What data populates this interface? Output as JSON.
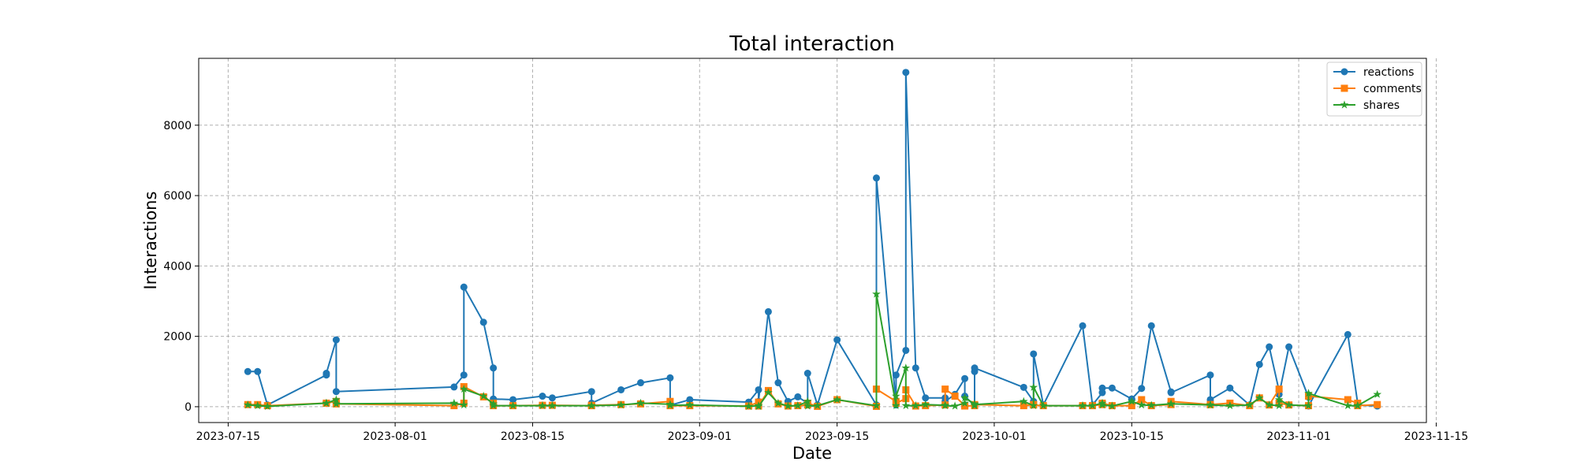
{
  "chart_data": {
    "type": "line",
    "title": "Total interaction",
    "xlabel": "Date",
    "ylabel": "Interactions",
    "grid": true,
    "legend_position": "top-right",
    "x_axis_type": "date",
    "xlim": [
      "2023-07-12",
      "2023-11-14"
    ],
    "ylim": [
      -450,
      9900
    ],
    "x_ticks": [
      "2023-07-15",
      "2023-08-01",
      "2023-08-15",
      "2023-09-01",
      "2023-09-15",
      "2023-10-01",
      "2023-10-15",
      "2023-11-01",
      "2023-11-15"
    ],
    "y_ticks": [
      0,
      2000,
      4000,
      6000,
      8000
    ],
    "dates": [
      "2023-07-17",
      "2023-07-18",
      "2023-07-19",
      "2023-07-25",
      "2023-07-25",
      "2023-07-26",
      "2023-07-26",
      "2023-08-07",
      "2023-08-08",
      "2023-08-08",
      "2023-08-10",
      "2023-08-11",
      "2023-08-11",
      "2023-08-13",
      "2023-08-16",
      "2023-08-17",
      "2023-08-21",
      "2023-08-21",
      "2023-08-24",
      "2023-08-26",
      "2023-08-29",
      "2023-08-29",
      "2023-08-31",
      "2023-09-06",
      "2023-09-07",
      "2023-09-07",
      "2023-09-08",
      "2023-09-09",
      "2023-09-10",
      "2023-09-11",
      "2023-09-12",
      "2023-09-12",
      "2023-09-13",
      "2023-09-15",
      "2023-09-19",
      "2023-09-19",
      "2023-09-21",
      "2023-09-21",
      "2023-09-22",
      "2023-09-22",
      "2023-09-23",
      "2023-09-24",
      "2023-09-26",
      "2023-09-26",
      "2023-09-27",
      "2023-09-28",
      "2023-09-28",
      "2023-09-29",
      "2023-09-29",
      "2023-09-29",
      "2023-10-04",
      "2023-10-05",
      "2023-10-05",
      "2023-10-06",
      "2023-10-10",
      "2023-10-11",
      "2023-10-12",
      "2023-10-12",
      "2023-10-13",
      "2023-10-15",
      "2023-10-16",
      "2023-10-17",
      "2023-10-19",
      "2023-10-19",
      "2023-10-23",
      "2023-10-23",
      "2023-10-25",
      "2023-10-27",
      "2023-10-28",
      "2023-10-29",
      "2023-10-30",
      "2023-10-30",
      "2023-10-31",
      "2023-11-02",
      "2023-11-02",
      "2023-11-06",
      "2023-11-07",
      "2023-11-07",
      "2023-11-09"
    ],
    "series": [
      {
        "name": "reactions",
        "color": "#1f77b4",
        "marker": "circle",
        "values": [
          1000,
          1000,
          50,
          900,
          950,
          1900,
          430,
          560,
          900,
          3400,
          2400,
          1100,
          220,
          200,
          300,
          250,
          430,
          100,
          480,
          680,
          820,
          40,
          200,
          130,
          480,
          150,
          2700,
          680,
          150,
          280,
          100,
          950,
          50,
          1900,
          50,
          6500,
          50,
          900,
          1600,
          9500,
          1100,
          250,
          250,
          150,
          350,
          800,
          300,
          30,
          1000,
          1100,
          550,
          150,
          1500,
          50,
          2300,
          50,
          400,
          530,
          530,
          220,
          520,
          2300,
          420,
          400,
          900,
          200,
          530,
          50,
          1200,
          1700,
          450,
          350,
          1700,
          270,
          20,
          2050,
          100,
          50,
          20
        ]
      },
      {
        "name": "comments",
        "color": "#ff7f0e",
        "marker": "square",
        "values": [
          60,
          60,
          30,
          100,
          100,
          150,
          80,
          30,
          100,
          570,
          280,
          100,
          30,
          30,
          40,
          40,
          30,
          40,
          60,
          80,
          150,
          30,
          30,
          20,
          130,
          20,
          460,
          80,
          20,
          30,
          50,
          100,
          10,
          200,
          10,
          500,
          150,
          100,
          230,
          480,
          20,
          30,
          50,
          500,
          300,
          30,
          20,
          30,
          50,
          60,
          30,
          60,
          50,
          30,
          30,
          30,
          60,
          100,
          30,
          30,
          200,
          30,
          60,
          150,
          60,
          60,
          100,
          30,
          250,
          50,
          500,
          100,
          50,
          30,
          300,
          200,
          100,
          30,
          60
        ]
      },
      {
        "name": "shares",
        "color": "#2ca02c",
        "marker": "star",
        "values": [
          50,
          30,
          10,
          100,
          100,
          200,
          80,
          100,
          50,
          500,
          300,
          80,
          30,
          30,
          30,
          30,
          30,
          30,
          50,
          100,
          70,
          40,
          50,
          10,
          30,
          10,
          400,
          100,
          20,
          30,
          150,
          20,
          30,
          200,
          30,
          3200,
          30,
          300,
          1100,
          30,
          30,
          60,
          40,
          30,
          20,
          100,
          250,
          80,
          30,
          60,
          150,
          30,
          550,
          30,
          30,
          30,
          100,
          50,
          20,
          150,
          50,
          40,
          80,
          80,
          50,
          50,
          30,
          50,
          250,
          50,
          30,
          200,
          50,
          30,
          380,
          30,
          30,
          30,
          350
        ]
      }
    ]
  }
}
